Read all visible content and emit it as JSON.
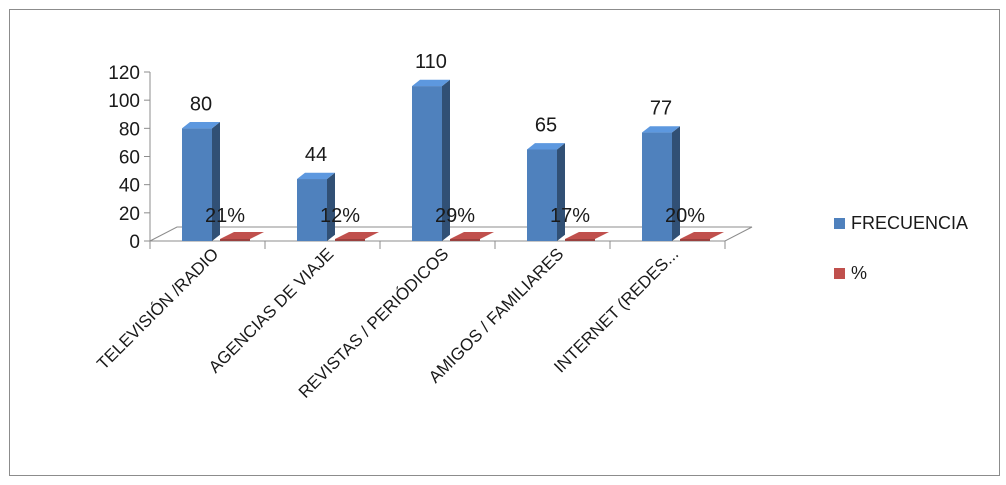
{
  "chart_data": {
    "type": "bar",
    "categories": [
      "TELEVISIÓN /RADIO",
      "AGENCIAS DE VIAJE",
      "REVISTAS / PERIÓDICOS",
      "AMIGOS / FAMILIARES",
      "INTERNET (REDES..."
    ],
    "series": [
      {
        "name": "FRECUENCIA",
        "values": [
          80,
          44,
          110,
          65,
          77
        ],
        "data_labels": [
          "80",
          "44",
          "110",
          "65",
          "77"
        ],
        "color": "#4F81BD"
      },
      {
        "name": "%",
        "values": [
          0.21,
          0.12,
          0.29,
          0.17,
          0.2
        ],
        "data_labels": [
          "21%",
          "12%",
          "29%",
          "17%",
          "20%"
        ],
        "color": "#C0504D"
      }
    ],
    "ylim": [
      0,
      120
    ],
    "yticks": [
      0,
      20,
      40,
      60,
      80,
      100,
      120
    ],
    "title": "",
    "xlabel": "",
    "ylabel": "",
    "legend_position": "right",
    "grid": false,
    "style": "3d-column"
  }
}
